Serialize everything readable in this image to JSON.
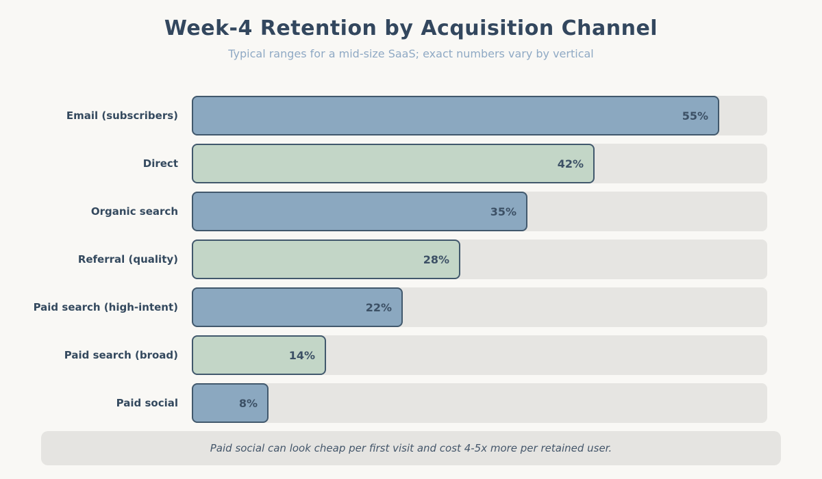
{
  "chart_data": {
    "type": "bar",
    "orientation": "horizontal",
    "title": "Week-4 Retention by Acquisition Channel",
    "subtitle": "Typical ranges for a mid-size SaaS; exact numbers vary by vertical",
    "categories": [
      "Email (subscribers)",
      "Direct",
      "Organic search",
      "Referral (quality)",
      "Paid search (high-intent)",
      "Paid search (broad)",
      "Paid social"
    ],
    "values": [
      55,
      42,
      35,
      28,
      22,
      14,
      8
    ],
    "value_labels": [
      "55%",
      "42%",
      "35%",
      "28%",
      "22%",
      "14%",
      "8%"
    ],
    "bar_colors": [
      "#8ba8c0",
      "#c3d6c7",
      "#8ba8c0",
      "#c3d6c7",
      "#8ba8c0",
      "#c3d6c7",
      "#8ba8c0"
    ],
    "xlim": [
      0,
      60
    ],
    "grid": false,
    "legend": null,
    "note": "Paid social can look cheap per first visit and cost 4-5x more per retained user."
  },
  "palette": {
    "background": "#f9f8f5",
    "bar_blue": "#8ba8c0",
    "bar_green": "#c3d6c7",
    "bar_border": "#41586c",
    "track": "#e6e5e2",
    "note_bg": "#e5e4e1",
    "title_color": "#33475e",
    "subtitle_color": "#8fa9c4",
    "label_color": "#34495e",
    "value_color": "#3c5065",
    "note_color": "#44566a"
  }
}
